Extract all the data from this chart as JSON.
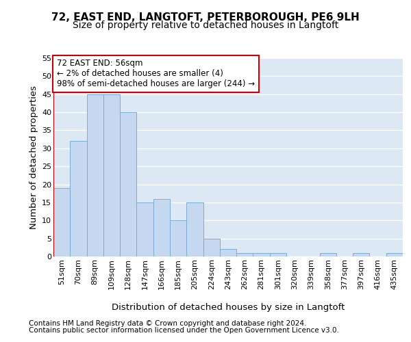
{
  "title1": "72, EAST END, LANGTOFT, PETERBOROUGH, PE6 9LH",
  "title2": "Size of property relative to detached houses in Langtoft",
  "xlabel": "Distribution of detached houses by size in Langtoft",
  "ylabel": "Number of detached properties",
  "categories": [
    "51sqm",
    "70sqm",
    "89sqm",
    "109sqm",
    "128sqm",
    "147sqm",
    "166sqm",
    "185sqm",
    "205sqm",
    "224sqm",
    "243sqm",
    "262sqm",
    "281sqm",
    "301sqm",
    "320sqm",
    "339sqm",
    "358sqm",
    "377sqm",
    "397sqm",
    "416sqm",
    "435sqm"
  ],
  "values": [
    19,
    32,
    45,
    45,
    40,
    15,
    16,
    10,
    15,
    5,
    2,
    1,
    1,
    1,
    0,
    0,
    1,
    0,
    1,
    0,
    1
  ],
  "bar_color": "#c5d8f0",
  "bar_edge_color": "#7aadd4",
  "highlight_color": "#cc0000",
  "annotation_title": "72 EAST END: 56sqm",
  "annotation_line1": "← 2% of detached houses are smaller (4)",
  "annotation_line2": "98% of semi-detached houses are larger (244) →",
  "annotation_box_facecolor": "#ffffff",
  "annotation_box_edgecolor": "#cc0000",
  "ylim": [
    0,
    55
  ],
  "yticks": [
    0,
    5,
    10,
    15,
    20,
    25,
    30,
    35,
    40,
    45,
    50,
    55
  ],
  "footer1": "Contains HM Land Registry data © Crown copyright and database right 2024.",
  "footer2": "Contains public sector information licensed under the Open Government Licence v3.0.",
  "bg_color": "#ffffff",
  "plot_bg_color": "#dde8f5",
  "grid_color": "#ffffff",
  "title_fontsize": 11,
  "subtitle_fontsize": 10,
  "axis_label_fontsize": 9.5,
  "tick_fontsize": 8,
  "annotation_fontsize": 8.5,
  "footer_fontsize": 7.5
}
